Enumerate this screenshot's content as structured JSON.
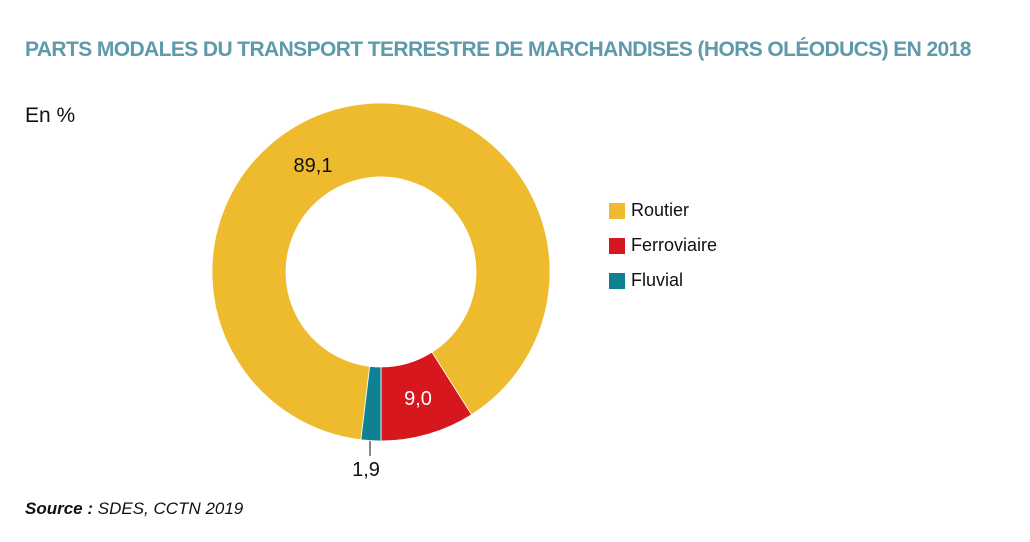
{
  "title": "PARTS MODALES DU TRANSPORT TERRESTRE DE MARCHANDISES (HORS OLÉODUCS) EN 2018",
  "unit": "En %",
  "source": {
    "label": "Source :",
    "text": "SDES, CCTN 2019"
  },
  "chart_data": {
    "type": "pie",
    "variant": "donut",
    "title": "PARTS MODALES DU TRANSPORT TERRESTRE DE MARCHANDISES (HORS OLÉODUCS) EN 2018",
    "unit": "%",
    "legend_position": "right",
    "slices": [
      {
        "name": "Routier",
        "value": 89.1,
        "label": "89,1",
        "color": "#efbb2e"
      },
      {
        "name": "Ferroviaire",
        "value": 9.0,
        "label": "9,0",
        "color": "#d7171e"
      },
      {
        "name": "Fluvial",
        "value": 1.9,
        "label": "1,9",
        "color": "#0e8193"
      }
    ]
  }
}
